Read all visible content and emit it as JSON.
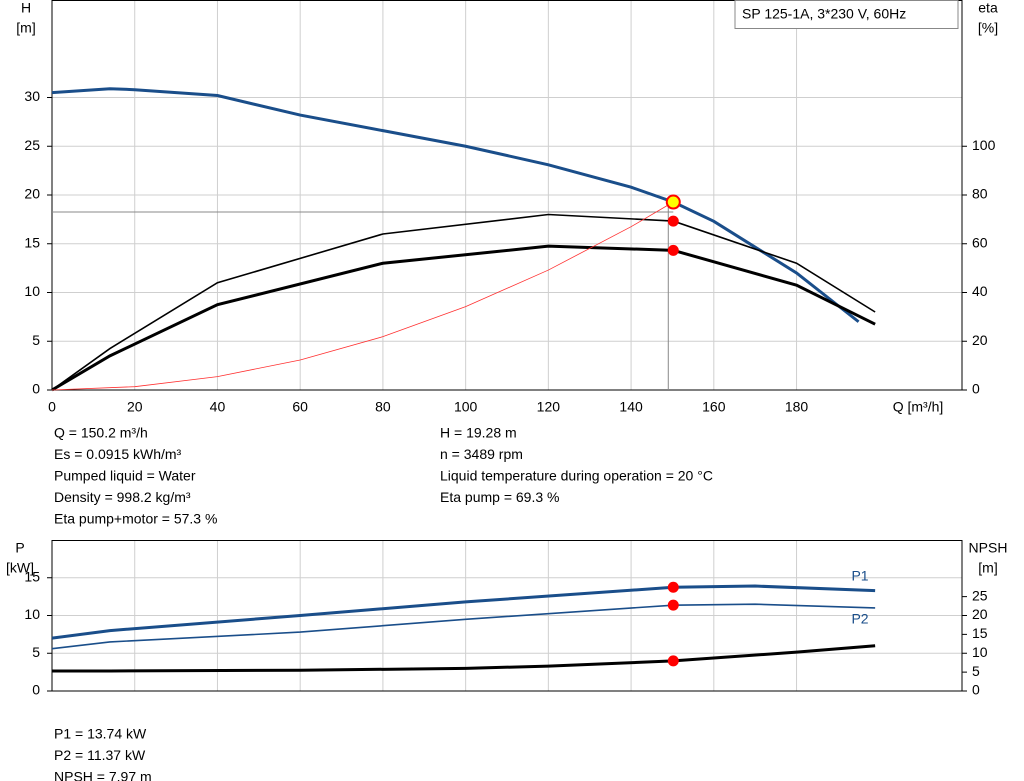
{
  "chart_data": [
    {
      "type": "line",
      "legend_text": "SP 125-1A, 3*230 V, 60Hz",
      "y_label": [
        "H",
        "[m]"
      ],
      "y2_label": [
        "eta",
        "[%]"
      ],
      "x_label": "Q [m³/h]",
      "xlim": [
        0,
        220
      ],
      "xticks": [
        0,
        20,
        40,
        60,
        80,
        100,
        120,
        140,
        160,
        180
      ],
      "ylim": [
        0,
        40
      ],
      "yticks": [
        0,
        5,
        10,
        15,
        20,
        25,
        30
      ],
      "y2lim": [
        0,
        160
      ],
      "y2ticks": [
        0,
        20,
        40,
        60,
        80,
        100
      ],
      "grid": true,
      "series": [
        {
          "color": "#1a4e8a",
          "line_width": 3,
          "x": [
            0,
            14,
            20,
            40,
            60,
            80,
            100,
            120,
            140,
            150.2,
            160,
            180,
            195
          ],
          "values": [
            30.5,
            30.9,
            30.8,
            30.2,
            28.2,
            26.6,
            25,
            23.1,
            20.8,
            19.28,
            17.3,
            12,
            7
          ]
        },
        {
          "color": "#000000",
          "line_width": 1.6,
          "axis": "y2",
          "x": [
            0,
            14,
            40,
            80,
            120,
            150.2,
            180,
            199
          ],
          "values": [
            0,
            17,
            44,
            64,
            72,
            69.3,
            52,
            32
          ]
        },
        {
          "color": "#000000",
          "line_width": 3,
          "axis": "y2",
          "x": [
            0,
            14,
            40,
            80,
            120,
            150.2,
            180,
            199
          ],
          "values": [
            0,
            14,
            35,
            52,
            59,
            57.3,
            43,
            27
          ]
        },
        {
          "color": "#ff3030",
          "line_width": 0.8,
          "x": [
            0,
            20,
            40,
            60,
            80,
            100,
            120,
            140,
            150.2
          ],
          "values": [
            0,
            0.34,
            1.37,
            3.08,
            5.47,
            8.55,
            12.3,
            16.75,
            19.28
          ]
        }
      ],
      "points": [
        {
          "x": 150.2,
          "y": 19.28,
          "color": "#ffff00"
        },
        {
          "x": 150.2,
          "y": 69.3,
          "axis": "y2",
          "color": "#ff0000"
        },
        {
          "x": 150.2,
          "y": 57.3,
          "axis": "y2",
          "color": "#ff0000"
        }
      ],
      "info_left": [
        "Q = 150.2 m³/h",
        "Es = 0.0915 kWh/m³",
        "Pumped liquid = Water",
        "Density = 998.2 kg/m³",
        "Eta pump+motor = 57.3 %"
      ],
      "info_right": [
        "H = 19.28 m",
        "n = 3489 rpm",
        "Liquid temperature during operation = 20 °C",
        "Eta pump = 69.3 %"
      ]
    },
    {
      "type": "line",
      "y_label": [
        "P",
        "[kW]"
      ],
      "y2_label": [
        "NPSH",
        "[m]"
      ],
      "xlim": [
        0,
        220
      ],
      "xticks": [
        0,
        20,
        40,
        60,
        80,
        100,
        120,
        140,
        160,
        180
      ],
      "ylim": [
        0,
        20
      ],
      "yticks": [
        0,
        5,
        10,
        15
      ],
      "y2lim": [
        0,
        40
      ],
      "y2ticks": [
        0,
        5,
        10,
        15,
        20,
        25
      ],
      "grid": true,
      "series": [
        {
          "name": "P1",
          "color": "#1a4e8a",
          "line_width": 3,
          "x": [
            0,
            14,
            60,
            100,
            150.2,
            170,
            199
          ],
          "values": [
            7,
            8,
            10,
            11.8,
            13.74,
            13.9,
            13.3
          ]
        },
        {
          "name": "P2",
          "color": "#1a4e8a",
          "line_width": 1.6,
          "x": [
            0,
            14,
            60,
            100,
            150.2,
            170,
            199
          ],
          "values": [
            5.6,
            6.5,
            7.8,
            9.5,
            11.37,
            11.5,
            11
          ]
        },
        {
          "color": "#000000",
          "line_width": 3,
          "axis": "y2",
          "x": [
            0,
            14,
            60,
            100,
            120,
            150.2,
            180,
            199
          ],
          "values": [
            5.3,
            5.3,
            5.5,
            6,
            6.6,
            7.97,
            10.3,
            12
          ]
        }
      ],
      "points": [
        {
          "x": 150.2,
          "y": 13.74,
          "color": "#ff0000"
        },
        {
          "x": 150.2,
          "y": 11.37,
          "color": "#ff0000"
        },
        {
          "x": 150.2,
          "y": 7.97,
          "axis": "y2",
          "color": "#ff0000"
        }
      ],
      "info_left": [
        "P1 = 13.74 kW",
        "P2 = 11.37 kW",
        "NPSH = 7.97 m"
      ]
    }
  ]
}
